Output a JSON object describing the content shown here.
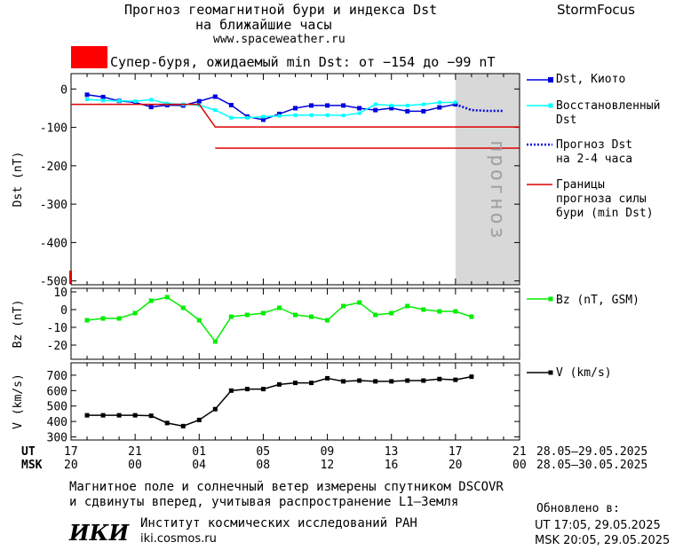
{
  "header": {
    "title_line1": "Прогноз геомагнитной бури и индекса Dst",
    "title_line2": "на ближайшие часы",
    "site": "www.spaceweather.ru",
    "brand": "StormFocus"
  },
  "storm_banner": {
    "text": "Супер-буря, ожидаемый min Dst: от −154 до −99 nT",
    "color": "#ff0000"
  },
  "legend": {
    "dst_kyoto": "Dst, Киото",
    "recon_1": "Восстановленный",
    "recon_2": "Dst",
    "forecast_1": "Прогноз Dst",
    "forecast_2": "на 2-4 часа",
    "bounds_1": "Границы",
    "bounds_2": "прогноза силы",
    "bounds_3": "бури (min Dst)",
    "bz": "Bz (nT, GSM)",
    "v": "V (km/s)"
  },
  "forecast_label": "прогноз",
  "time_axis": {
    "ut_label": "UT",
    "msk_label": "MSK",
    "ut_ticks": [
      "17",
      "21",
      "01",
      "05",
      "09",
      "13",
      "17",
      "21"
    ],
    "msk_ticks": [
      "20",
      "00",
      "04",
      "08",
      "12",
      "16",
      "20",
      "00"
    ],
    "ut_range": "28.05–29.05.2025",
    "msk_range": "28.05–30.05.2025"
  },
  "footer": {
    "note_1": "Магнитное поле и солнечный ветер измерены спутником DSCOVR",
    "note_2": "и сдвинуты вперед, учитывая распространение L1–Земля",
    "logo": "ИКИ",
    "institute": "Институт космических исследований РАН",
    "inst_site": "iki.cosmos.ru",
    "updated_label": "Обновлено в:",
    "updated_ut": "UT   17:05, 29.05.2025",
    "updated_msk": "MSK 20:05, 29.05.2025"
  },
  "colors": {
    "dst": "#0000dd",
    "recon": "#00ffff",
    "forecast": "#0000dd",
    "bounds": "#dd0000",
    "bz": "#00ee00",
    "v": "#000000",
    "forecast_bg": "#d8d8d8"
  },
  "chart_data": [
    {
      "type": "line",
      "ylabel": "Dst (nT)",
      "ylim": [
        -510,
        40
      ],
      "xlim": [
        0,
        28
      ],
      "forecast_region": [
        24,
        28
      ],
      "yticks": [
        0,
        -100,
        -200,
        -300,
        -400,
        -500
      ],
      "series": [
        {
          "name": "Dst, Киото",
          "x": [
            1,
            2,
            3,
            4,
            5,
            6,
            7,
            8,
            9,
            10,
            11,
            12,
            13,
            14,
            15,
            16,
            17,
            18,
            19,
            20,
            21,
            22,
            23,
            24
          ],
          "values": [
            -15,
            -21,
            -31,
            -35,
            -47,
            -42,
            -43,
            -32,
            -20,
            -42,
            -72,
            -80,
            -65,
            -50,
            -43,
            -43,
            -43,
            -50,
            -55,
            -50,
            -58,
            -58,
            -48,
            -40
          ]
        },
        {
          "name": "Восстановленный Dst",
          "x": [
            1,
            2,
            3,
            4,
            5,
            6,
            7,
            8,
            9,
            10,
            11,
            12,
            13,
            14,
            15,
            16,
            17,
            18,
            19,
            20,
            21,
            22,
            23,
            24
          ],
          "values": [
            -27,
            -30,
            -31,
            -32,
            -28,
            -38,
            -40,
            -42,
            -55,
            -75,
            -75,
            -72,
            -70,
            -68,
            -68,
            -68,
            -69,
            -63,
            -40,
            -43,
            -43,
            -40,
            -35,
            -35
          ]
        },
        {
          "name": "Прогноз Dst на 2-4 часа",
          "x": [
            24,
            25,
            26,
            27
          ],
          "values": [
            -40,
            -55,
            -57,
            -57
          ]
        },
        {
          "name": "Границы прогноза силы бури (min Dst)",
          "segments": [
            {
              "x": [
                0,
                8,
                9,
                28
              ],
              "values": [
                -40,
                -40,
                -99,
                -99
              ]
            },
            {
              "x": [
                9,
                28
              ],
              "values": [
                -154,
                -154
              ]
            }
          ]
        }
      ]
    },
    {
      "type": "line",
      "ylabel": "Bz (nT)",
      "ylim": [
        -28,
        12
      ],
      "xlim": [
        0,
        28
      ],
      "yticks": [
        10,
        0,
        -10,
        -20
      ],
      "series": [
        {
          "name": "Bz (nT, GSM)",
          "x": [
            1,
            2,
            3,
            4,
            5,
            6,
            7,
            8,
            9,
            10,
            11,
            12,
            13,
            14,
            15,
            16,
            17,
            18,
            19,
            20,
            21,
            22,
            23,
            24,
            25
          ],
          "values": [
            -6,
            -5,
            -5,
            -2,
            5,
            7,
            1,
            -6,
            -18,
            -4,
            -3,
            -2,
            1,
            -3,
            -4,
            -6,
            2,
            4,
            -3,
            -2,
            2,
            0,
            -1,
            -1,
            -4
          ]
        }
      ]
    },
    {
      "type": "line",
      "ylabel": "V (km/s)",
      "ylim": [
        280,
        780
      ],
      "xlim": [
        0,
        28
      ],
      "yticks": [
        700,
        600,
        500,
        400,
        300
      ],
      "series": [
        {
          "name": "V (km/s)",
          "x": [
            1,
            2,
            3,
            4,
            5,
            6,
            7,
            8,
            9,
            10,
            11,
            12,
            13,
            14,
            15,
            16,
            17,
            18,
            19,
            20,
            21,
            22,
            23,
            24,
            25
          ],
          "values": [
            440,
            440,
            440,
            440,
            437,
            390,
            370,
            410,
            480,
            600,
            610,
            610,
            640,
            650,
            650,
            680,
            660,
            665,
            660,
            660,
            665,
            665,
            675,
            670,
            690
          ]
        }
      ]
    }
  ]
}
